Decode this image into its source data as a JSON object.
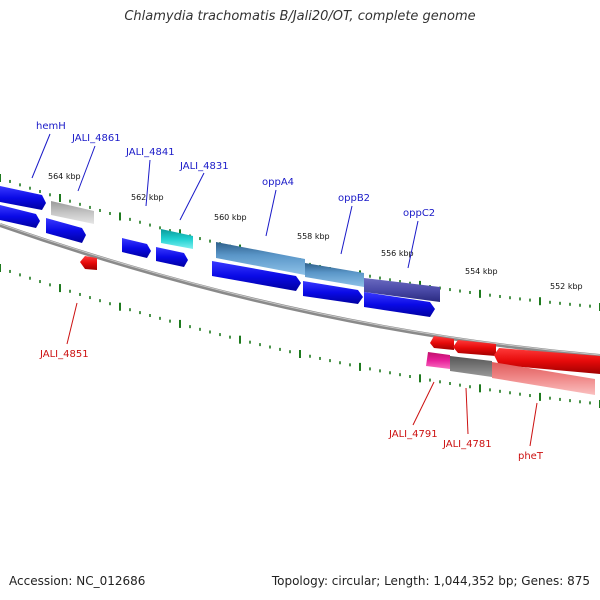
{
  "header": {
    "title": "Chlamydia trachomatis B/Jali20/OT, complete genome"
  },
  "footer": {
    "accession": "Accession: NC_012686",
    "stats": "Topology: circular; Length: 1,044,352 bp; Genes: 875"
  },
  "kbp_labels": [
    "564 kbp",
    "562 kbp",
    "560 kbp",
    "558 kbp",
    "556 kbp",
    "554 kbp",
    "552 kbp"
  ],
  "genes_top": [
    "hemH",
    "JALI_4861",
    "JALI_4841",
    "JALI_4831",
    "oppA4",
    "oppB2",
    "oppC2"
  ],
  "genes_bottom": [
    "JALI_4851",
    "JALI_4791",
    "JALI_4781",
    "pheT"
  ],
  "colors": {
    "forward": "#0a0ae6",
    "reverse": "#e60a0a",
    "tick": "#1e7a1e",
    "backbone": "#8a8a8a",
    "label_forward": "#1a1ac8",
    "label_reverse": "#cc1111"
  }
}
